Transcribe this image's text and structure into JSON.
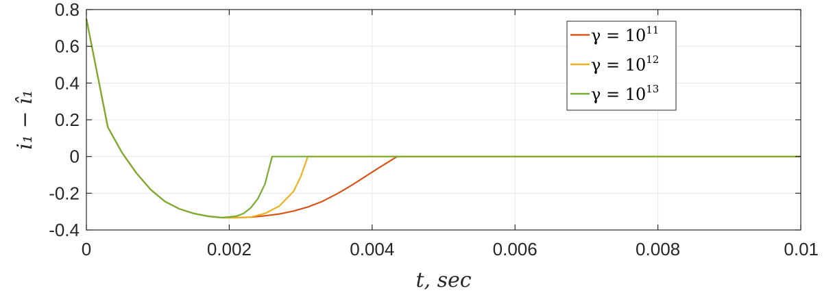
{
  "chart_data": {
    "type": "line",
    "xlabel": "t, sec",
    "ylabel": "i₁ − î₁",
    "xlim": [
      0,
      0.01
    ],
    "ylim": [
      -0.4,
      0.8
    ],
    "xticks": [
      0,
      0.002,
      0.004,
      0.006,
      0.008,
      0.01
    ],
    "xtick_labels": [
      "0",
      "0.002",
      "0.004",
      "0.006",
      "0.008",
      "0.01"
    ],
    "yticks": [
      -0.4,
      -0.2,
      0,
      0.2,
      0.4,
      0.6,
      0.8
    ],
    "ytick_labels": [
      "-0.4",
      "-0.2",
      "0",
      "0.2",
      "0.4",
      "0.6",
      "0.8"
    ],
    "grid": true,
    "legend_position": "top-right",
    "series": [
      {
        "name": "γ = 10^11",
        "legend_base": "γ = 10",
        "legend_exp": "11",
        "color": "#D95319",
        "x": [
          0,
          0.0003,
          0.0005,
          0.0007,
          0.0009,
          0.0011,
          0.0013,
          0.0015,
          0.0017,
          0.0019,
          0.0021,
          0.0023,
          0.0025,
          0.0027,
          0.0029,
          0.0031,
          0.0033,
          0.0035,
          0.0037,
          0.0039,
          0.0041,
          0.00435,
          0.005,
          0.006,
          0.007,
          0.008,
          0.009,
          0.01
        ],
        "y": [
          0.75,
          0.16,
          0.02,
          -0.09,
          -0.18,
          -0.245,
          -0.285,
          -0.31,
          -0.325,
          -0.333,
          -0.333,
          -0.33,
          -0.323,
          -0.313,
          -0.297,
          -0.275,
          -0.245,
          -0.205,
          -0.16,
          -0.11,
          -0.06,
          0,
          0,
          0,
          0,
          0,
          0,
          0
        ]
      },
      {
        "name": "γ = 10^12",
        "legend_base": "γ = 10",
        "legend_exp": "12",
        "color": "#EDB120",
        "x": [
          0,
          0.0003,
          0.0005,
          0.0007,
          0.0009,
          0.0011,
          0.0013,
          0.0015,
          0.0017,
          0.0019,
          0.0021,
          0.0023,
          0.0025,
          0.0027,
          0.0029,
          0.003,
          0.0031,
          0.004,
          0.005,
          0.006,
          0.007,
          0.008,
          0.009,
          0.01
        ],
        "y": [
          0.75,
          0.16,
          0.02,
          -0.09,
          -0.18,
          -0.245,
          -0.285,
          -0.31,
          -0.325,
          -0.333,
          -0.333,
          -0.33,
          -0.31,
          -0.27,
          -0.19,
          -0.11,
          0,
          0,
          0,
          0,
          0,
          0,
          0,
          0
        ]
      },
      {
        "name": "γ = 10^13",
        "legend_base": "γ = 10",
        "legend_exp": "13",
        "color": "#77AC30",
        "x": [
          0,
          0.0003,
          0.0005,
          0.0007,
          0.0009,
          0.0011,
          0.0013,
          0.0015,
          0.0017,
          0.0019,
          0.0021,
          0.0022,
          0.0023,
          0.0024,
          0.0025,
          0.0026,
          0.003,
          0.004,
          0.005,
          0.006,
          0.007,
          0.008,
          0.009,
          0.01
        ],
        "y": [
          0.75,
          0.16,
          0.02,
          -0.09,
          -0.18,
          -0.245,
          -0.285,
          -0.31,
          -0.325,
          -0.333,
          -0.325,
          -0.31,
          -0.28,
          -0.23,
          -0.15,
          0,
          0,
          0,
          0,
          0,
          0,
          0,
          0,
          0
        ]
      }
    ]
  }
}
